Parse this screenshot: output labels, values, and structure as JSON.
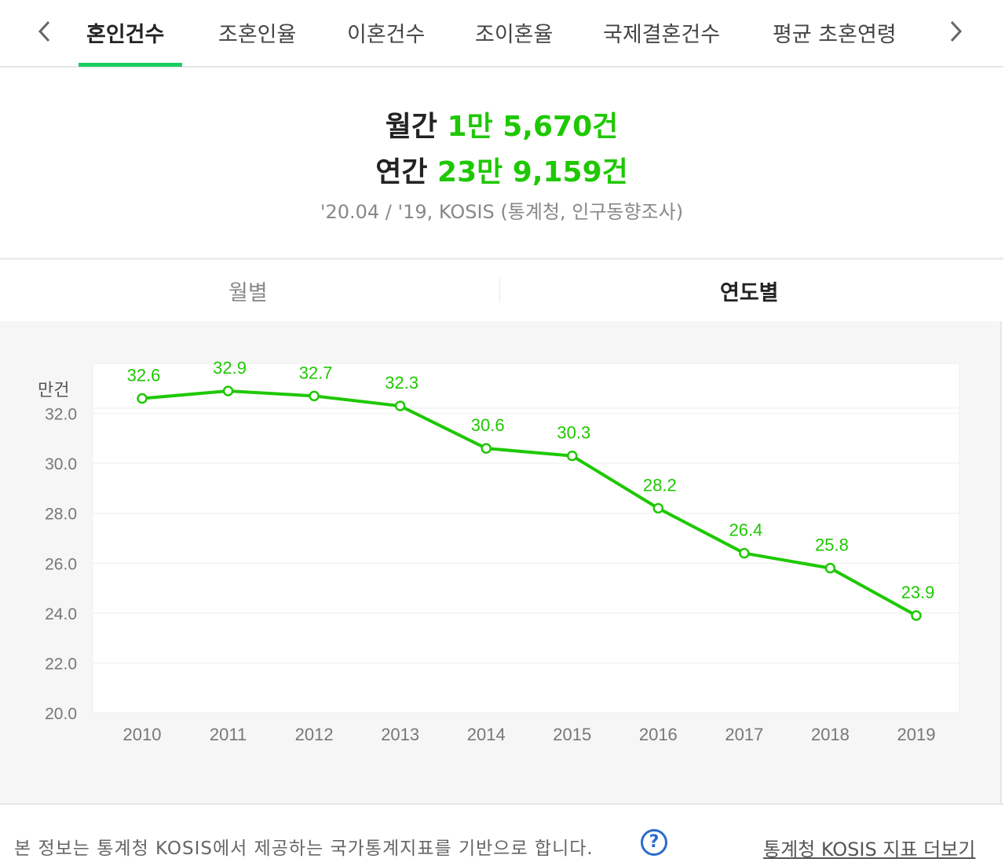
{
  "tabs": {
    "items": [
      {
        "label": "혼인건수",
        "active": true
      },
      {
        "label": "조혼인율",
        "active": false
      },
      {
        "label": "이혼건수",
        "active": false
      },
      {
        "label": "조이혼율",
        "active": false
      },
      {
        "label": "국제결혼건수",
        "active": false
      },
      {
        "label": "평균 초혼연령",
        "active": false
      }
    ],
    "prev_icon": "chevron-left-icon",
    "next_icon": "chevron-right-icon"
  },
  "summary": {
    "monthly_label": "월간",
    "monthly_value": "1만 5,670건",
    "yearly_label": "연간",
    "yearly_value": "23만 9,159건",
    "source": "'20.04 / '19, KOSIS (통계청, 인구동향조사)"
  },
  "subtabs": {
    "monthly": "월별",
    "yearly": "연도별"
  },
  "chart_data": {
    "type": "line",
    "ylabel": "만건",
    "categories": [
      "2010",
      "2011",
      "2012",
      "2013",
      "2014",
      "2015",
      "2016",
      "2017",
      "2018",
      "2019"
    ],
    "values": [
      32.6,
      32.9,
      32.7,
      32.3,
      30.6,
      30.3,
      28.2,
      26.4,
      25.8,
      23.9
    ],
    "value_labels": [
      "32.6",
      "32.9",
      "32.7",
      "32.3",
      "30.6",
      "30.3",
      "28.2",
      "26.4",
      "25.8",
      "23.9"
    ],
    "yticks": [
      "20.0",
      "22.0",
      "24.0",
      "26.0",
      "28.0",
      "30.0",
      "32.0"
    ],
    "ylim": [
      20,
      34
    ],
    "grid": true,
    "color": "#1ec800"
  },
  "footer": {
    "note": "본 정보는 통계청 KOSIS에서 제공하는 국가통계지표를 기반으로 합니다.",
    "help_icon": "question-icon",
    "help_symbol": "?",
    "link": "통계청 KOSIS 지표 더보기"
  }
}
